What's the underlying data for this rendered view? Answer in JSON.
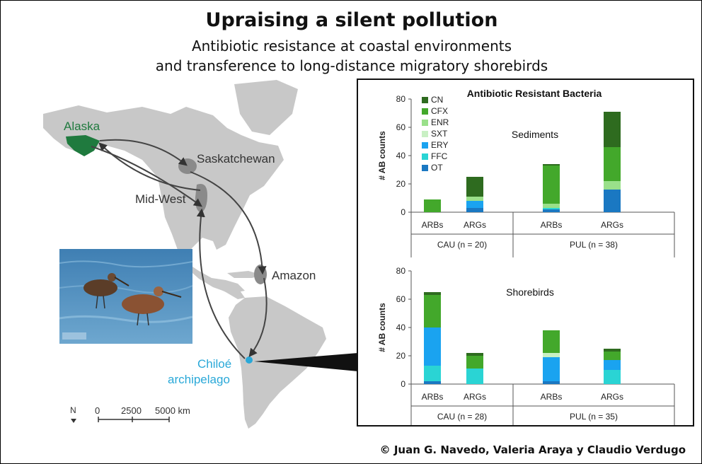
{
  "header": {
    "title": "Upraising a silent pollution",
    "subtitle_line1": "Antibiotic resistance at coastal environments",
    "subtitle_line2": "and transference to long-distance migratory shorebirds"
  },
  "map": {
    "labels": {
      "alaska": "Alaska",
      "saskatchewan": "Saskatchewan",
      "midwest": "Mid-West",
      "amazon": "Amazon",
      "chiloe_line1": "Chiloé",
      "chiloe_line2": "archipelago"
    },
    "scale": {
      "north": "N",
      "tick0": "0",
      "tick1": "2500",
      "tick2": "5000 km"
    },
    "colors": {
      "alaska": "#1f7a3e",
      "chiloe": "#29a8d8",
      "land": "#c8c8c8"
    }
  },
  "credit": "© Juan G. Navedo, Valeria Araya y Claudio Verdugo",
  "chart_data": [
    {
      "type": "bar",
      "stacked": true,
      "title": "Antibiotic Resistant Bacteria",
      "annotation": "Sediments",
      "ylabel": "# AB counts",
      "ylim": [
        0,
        80
      ],
      "yticks": [
        0,
        20,
        40,
        60,
        80
      ],
      "categories": [
        "ARBs",
        "ARGs",
        "ARBs",
        "ARGs"
      ],
      "groups": [
        {
          "label": "CAU (n = 20)",
          "span": [
            0,
            1
          ]
        },
        {
          "label": "PUL (n = 38)",
          "span": [
            2,
            3
          ]
        }
      ],
      "legend_position": "top-left",
      "series": [
        {
          "name": "OT",
          "color": "#1a78c2",
          "values": [
            0,
            3,
            2,
            16
          ]
        },
        {
          "name": "FFC",
          "color": "#2ad4d4",
          "values": [
            0,
            0,
            1,
            0
          ]
        },
        {
          "name": "ERY",
          "color": "#1aa3f0",
          "values": [
            0,
            5,
            0,
            0
          ]
        },
        {
          "name": "SXT",
          "color": "#c9f0c4",
          "values": [
            0,
            0,
            0,
            0
          ]
        },
        {
          "name": "ENR",
          "color": "#9ae08a",
          "values": [
            0,
            3,
            3,
            6
          ]
        },
        {
          "name": "CFX",
          "color": "#43a82b",
          "values": [
            9,
            0,
            27,
            24
          ]
        },
        {
          "name": "CN",
          "color": "#2e6b1f",
          "values": [
            0,
            14,
            1,
            25
          ]
        }
      ]
    },
    {
      "type": "bar",
      "stacked": true,
      "annotation": "Shorebirds",
      "ylabel": "# AB counts",
      "ylim": [
        0,
        80
      ],
      "yticks": [
        0,
        20,
        40,
        60,
        80
      ],
      "categories": [
        "ARBs",
        "ARGs",
        "ARBs",
        "ARGs"
      ],
      "groups": [
        {
          "label": "CAU (n = 28)",
          "span": [
            0,
            1
          ]
        },
        {
          "label": "PUL (n = 35)",
          "span": [
            2,
            3
          ]
        }
      ],
      "series": [
        {
          "name": "OT",
          "color": "#1a78c2",
          "values": [
            2,
            0,
            2,
            0
          ]
        },
        {
          "name": "FFC",
          "color": "#2ad4d4",
          "values": [
            11,
            11,
            0,
            10
          ]
        },
        {
          "name": "ERY",
          "color": "#1aa3f0",
          "values": [
            27,
            0,
            17,
            7
          ]
        },
        {
          "name": "SXT",
          "color": "#c9f0c4",
          "values": [
            0,
            0,
            3,
            0
          ]
        },
        {
          "name": "ENR",
          "color": "#9ae08a",
          "values": [
            0,
            0,
            0,
            0
          ]
        },
        {
          "name": "CFX",
          "color": "#43a82b",
          "values": [
            23,
            9,
            16,
            6
          ]
        },
        {
          "name": "CN",
          "color": "#2e6b1f",
          "values": [
            2,
            2,
            0,
            2
          ]
        }
      ]
    }
  ]
}
